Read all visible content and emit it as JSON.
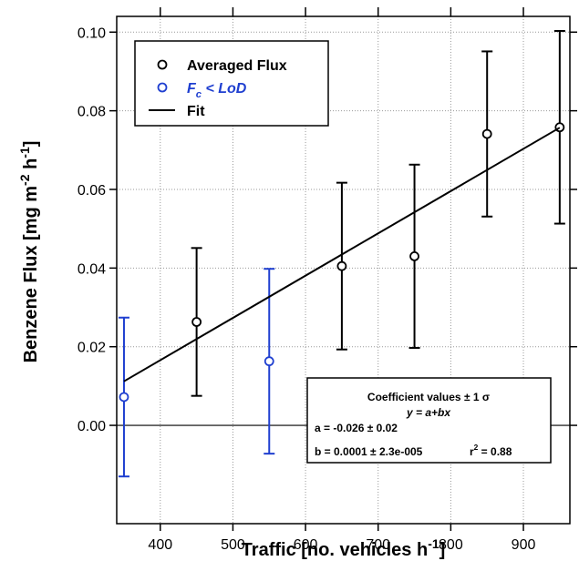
{
  "chart_data": {
    "type": "scatter",
    "xlabel": [
      "Traffic [no. vehicles h",
      "-1",
      "]"
    ],
    "ylabel": [
      "Benzene Flux [mg m",
      "-2",
      " h",
      "-1",
      "]"
    ],
    "xlim": [
      340,
      964
    ],
    "ylim": [
      -0.025,
      0.104
    ],
    "xticks": [
      400,
      500,
      600,
      700,
      800,
      900
    ],
    "yticks": [
      {
        "value": 0,
        "label": "0.00"
      },
      {
        "value": 0.02,
        "label": "0.02"
      },
      {
        "value": 0.04,
        "label": "0.04"
      },
      {
        "value": 0.06,
        "label": "0.06"
      },
      {
        "value": 0.08,
        "label": "0.08"
      },
      {
        "value": 0.1,
        "label": "0.10"
      }
    ],
    "grid": true,
    "zero_line": true,
    "legend": "upper left",
    "series": [
      {
        "name": [
          "Averaged Flux"
        ],
        "color": "#000000",
        "x": [
          450,
          650,
          750,
          850,
          950
        ],
        "values": [
          0.0263,
          0.0405,
          0.043,
          0.0741,
          0.0758
        ],
        "errors": [
          0.0188,
          0.0212,
          0.0233,
          0.021,
          0.0245
        ]
      },
      {
        "name": [
          "F",
          "c",
          " < LoD"
        ],
        "color": "#1f3fd0",
        "x": [
          350,
          550
        ],
        "values": [
          0.0072,
          0.0163
        ],
        "errors": [
          0.0202,
          0.0235
        ]
      },
      {
        "name": [
          "Fit"
        ],
        "type": "line",
        "color": "#000000",
        "x": [
          350,
          950
        ],
        "values": [
          0.0112,
          0.0757
        ]
      }
    ],
    "annotations": [
      [
        "Coefficient values ± 1 σ"
      ],
      [
        "y = a+bx"
      ],
      [
        "a = -0.026 ± 0.02"
      ],
      [
        "b = 0.0001 ± 2.3e-005"
      ],
      [
        "r",
        "2",
        " = 0.88"
      ]
    ]
  }
}
